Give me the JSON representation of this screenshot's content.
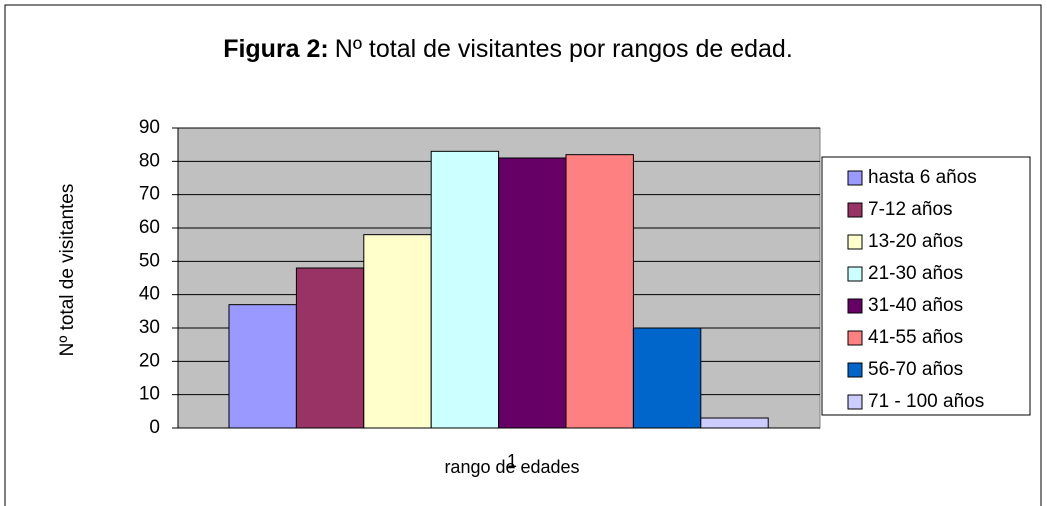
{
  "chart_data": {
    "type": "bar",
    "title_label": "Figura 2:",
    "title": "Nº total de visitantes por rangos de edad.",
    "x_label": "rango de edades",
    "y_label": "Nº total de visitantes",
    "categories": [
      "1"
    ],
    "series": [
      {
        "name": "hasta 6 años",
        "color": "#9999ff",
        "values": [
          37
        ]
      },
      {
        "name": "7-12 años",
        "color": "#993366",
        "values": [
          48
        ]
      },
      {
        "name": "13-20 años",
        "color": "#ffffcc",
        "values": [
          58
        ]
      },
      {
        "name": "21-30 años",
        "color": "#ccffff",
        "values": [
          83
        ]
      },
      {
        "name": "31-40 años",
        "color": "#660066",
        "values": [
          81
        ]
      },
      {
        "name": "41-55 años",
        "color": "#ff8080",
        "values": [
          82
        ]
      },
      {
        "name": "56-70 años",
        "color": "#0066cc",
        "values": [
          30
        ]
      },
      {
        "name": "71 - 100 años",
        "color": "#ccccff",
        "values": [
          3
        ]
      }
    ],
    "ylim": [
      0,
      90
    ],
    "yticks": [
      0,
      10,
      20,
      30,
      40,
      50,
      60,
      70,
      80,
      90
    ],
    "grid": true,
    "plot_background": "#c0c0c0",
    "legend": "right"
  }
}
